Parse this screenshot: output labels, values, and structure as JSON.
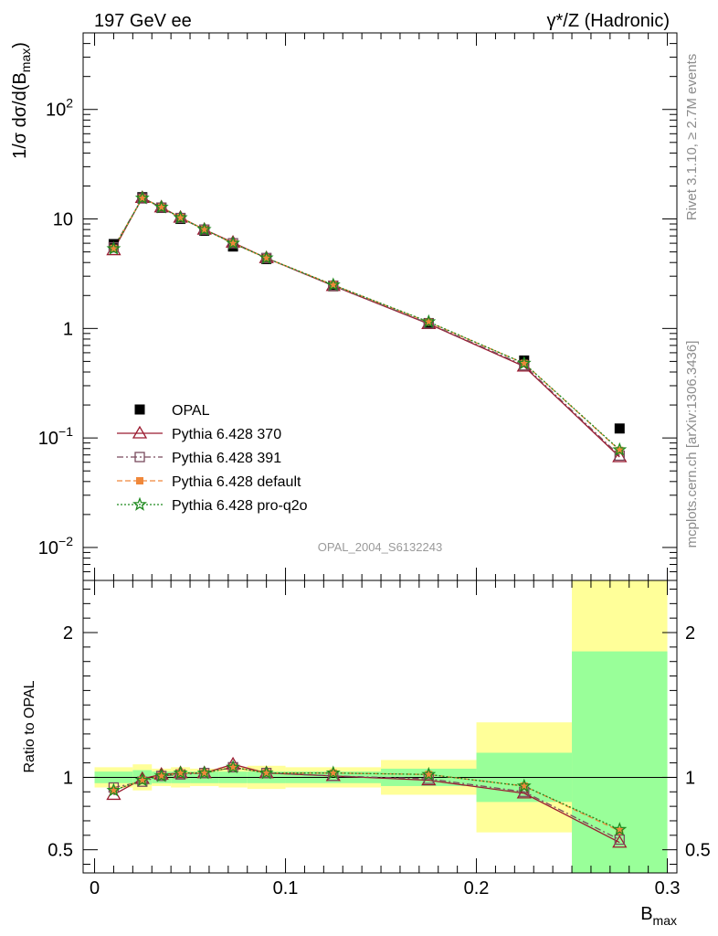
{
  "header": {
    "left_title": "197 GeV ee",
    "right_title": "γ*/Z (Hadronic)"
  },
  "side_labels": {
    "rivet": "Rivet 3.1.10, ≥ 2.7M events",
    "mcplots": "mcplots.cern.ch [arXiv:1306.3436]"
  },
  "watermark": "OPAL_2004_S6132243",
  "colors": {
    "opal": "#000000",
    "p370": "#9b1b30",
    "p391": "#7a4b5e",
    "pdefault": "#f0883a",
    "pq2o": "#1f8a1f",
    "band_inner": "#99ff99",
    "band_outer": "#ffff99"
  },
  "chart_data": [
    {
      "type": "line",
      "panel": "main",
      "ylabel": "1/σ dσ/d(B_max)",
      "yscale": "log",
      "ylim": [
        0.005,
        500
      ],
      "xlim": [
        -0.006,
        0.305
      ],
      "y_ticks": [
        {
          "value": 0.01,
          "mant": "10",
          "exp": "−2"
        },
        {
          "value": 0.1,
          "mant": "10",
          "exp": "−1"
        },
        {
          "value": 1,
          "mant": "1",
          "exp": ""
        },
        {
          "value": 10,
          "mant": "10",
          "exp": ""
        },
        {
          "value": 100,
          "mant": "10",
          "exp": "2"
        }
      ],
      "legend_position": "lower-left",
      "series": [
        {
          "key": "opal",
          "name": "OPAL",
          "marker": "square-filled",
          "x": [
            0.01,
            0.025,
            0.035,
            0.045,
            0.0575,
            0.0725,
            0.09,
            0.125,
            0.175,
            0.225,
            0.275
          ],
          "y": [
            5.9,
            15.8,
            12.6,
            10.0,
            7.8,
            5.6,
            4.3,
            2.43,
            1.12,
            0.51,
            0.122
          ]
        },
        {
          "key": "p370",
          "name": "Pythia 6.428 370",
          "marker": "triangle-open",
          "dash": "",
          "x": [
            0.01,
            0.025,
            0.035,
            0.045,
            0.0575,
            0.0725,
            0.09,
            0.125,
            0.175,
            0.225,
            0.275
          ],
          "y": [
            5.2,
            15.6,
            12.8,
            10.3,
            8.0,
            6.1,
            4.4,
            2.45,
            1.1,
            0.45,
            0.067
          ]
        },
        {
          "key": "p391",
          "name": "Pythia 6.428 391",
          "marker": "square-open",
          "dash": "7,3,2,3",
          "x": [
            0.01,
            0.025,
            0.035,
            0.045,
            0.0575,
            0.0725,
            0.09,
            0.125,
            0.175,
            0.225,
            0.275
          ],
          "y": [
            5.5,
            15.4,
            12.7,
            10.2,
            8.0,
            6.0,
            4.4,
            2.46,
            1.11,
            0.46,
            0.069
          ]
        },
        {
          "key": "pdefault",
          "name": "Pythia 6.428 default",
          "marker": "square-filled-small",
          "dash": "6,3",
          "x": [
            0.01,
            0.025,
            0.035,
            0.045,
            0.0575,
            0.0725,
            0.09,
            0.125,
            0.175,
            0.225,
            0.275
          ],
          "y": [
            5.4,
            15.5,
            12.8,
            10.3,
            8.0,
            6.0,
            4.4,
            2.5,
            1.14,
            0.48,
            0.077
          ]
        },
        {
          "key": "pq2o",
          "name": "Pythia 6.428 pro-q2o",
          "marker": "star",
          "dash": "2,2",
          "x": [
            0.01,
            0.025,
            0.035,
            0.045,
            0.0575,
            0.0725,
            0.09,
            0.125,
            0.175,
            0.225,
            0.275
          ],
          "y": [
            5.35,
            15.5,
            12.8,
            10.25,
            8.0,
            6.0,
            4.4,
            2.5,
            1.15,
            0.48,
            0.078
          ]
        }
      ]
    },
    {
      "type": "line",
      "panel": "ratio",
      "ylabel": "Ratio to OPAL",
      "xlabel": "B_max",
      "ylim": [
        0.34,
        2.36
      ],
      "xlim": [
        -0.006,
        0.305
      ],
      "x_ticks": [
        "0",
        "0.1",
        "0.2",
        "0.3"
      ],
      "y_ticks": [
        "0.5",
        "1",
        "2"
      ],
      "bands": [
        {
          "x": [
            0.0,
            0.02
          ],
          "inner": [
            0.96,
            1.04
          ],
          "outer": [
            0.93,
            1.07
          ]
        },
        {
          "x": [
            0.02,
            0.03
          ],
          "inner": [
            0.95,
            1.05
          ],
          "outer": [
            0.91,
            1.09
          ]
        },
        {
          "x": [
            0.03,
            0.04
          ],
          "inner": [
            0.96,
            1.04
          ],
          "outer": [
            0.94,
            1.06
          ]
        },
        {
          "x": [
            0.04,
            0.05
          ],
          "inner": [
            0.96,
            1.04
          ],
          "outer": [
            0.93,
            1.07
          ]
        },
        {
          "x": [
            0.05,
            0.065
          ],
          "inner": [
            0.96,
            1.04
          ],
          "outer": [
            0.94,
            1.06
          ]
        },
        {
          "x": [
            0.065,
            0.08
          ],
          "inner": [
            0.96,
            1.04
          ],
          "outer": [
            0.93,
            1.07
          ]
        },
        {
          "x": [
            0.08,
            0.1
          ],
          "inner": [
            0.96,
            1.04
          ],
          "outer": [
            0.92,
            1.08
          ]
        },
        {
          "x": [
            0.1,
            0.15
          ],
          "inner": [
            0.96,
            1.04
          ],
          "outer": [
            0.93,
            1.07
          ]
        },
        {
          "x": [
            0.15,
            0.2
          ],
          "inner": [
            0.94,
            1.06
          ],
          "outer": [
            0.88,
            1.12
          ]
        },
        {
          "x": [
            0.2,
            0.25
          ],
          "inner": [
            0.83,
            1.17
          ],
          "outer": [
            0.62,
            1.38
          ]
        },
        {
          "x": [
            0.25,
            0.3
          ],
          "inner": [
            0.3,
            1.87
          ],
          "outer": [
            0.3,
            2.36
          ]
        }
      ],
      "series": [
        {
          "key": "p370",
          "x": [
            0.01,
            0.025,
            0.035,
            0.045,
            0.0575,
            0.0725,
            0.09,
            0.125,
            0.175,
            0.225,
            0.275
          ],
          "y": [
            0.88,
            0.99,
            1.02,
            1.03,
            1.03,
            1.09,
            1.03,
            1.01,
            0.98,
            0.89,
            0.55
          ]
        },
        {
          "key": "p391",
          "x": [
            0.01,
            0.025,
            0.035,
            0.045,
            0.0575,
            0.0725,
            0.09,
            0.125,
            0.175,
            0.225,
            0.275
          ],
          "y": [
            0.93,
            0.97,
            1.01,
            1.02,
            1.03,
            1.07,
            1.03,
            1.01,
            0.99,
            0.9,
            0.57
          ]
        },
        {
          "key": "pdefault",
          "x": [
            0.01,
            0.025,
            0.035,
            0.045,
            0.0575,
            0.0725,
            0.09,
            0.125,
            0.175,
            0.225,
            0.275
          ],
          "y": [
            0.91,
            0.98,
            1.01,
            1.03,
            1.03,
            1.07,
            1.03,
            1.03,
            1.02,
            0.94,
            0.63
          ]
        },
        {
          "key": "pq2o",
          "x": [
            0.01,
            0.025,
            0.035,
            0.045,
            0.0575,
            0.0725,
            0.09,
            0.125,
            0.175,
            0.225,
            0.275
          ],
          "y": [
            0.91,
            0.98,
            1.01,
            1.03,
            1.03,
            1.07,
            1.03,
            1.03,
            1.02,
            0.94,
            0.64
          ]
        }
      ]
    }
  ]
}
